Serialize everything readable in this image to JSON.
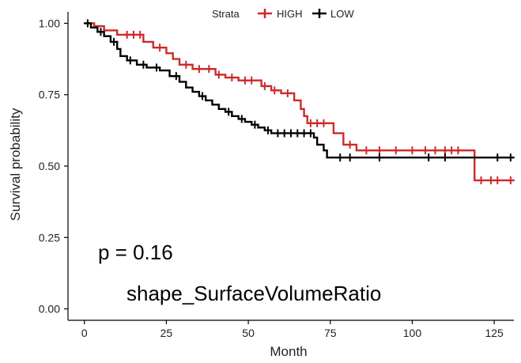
{
  "chart_data": {
    "type": "line",
    "subtype": "kaplan-meier-survival",
    "xlabel": "Month",
    "ylabel": "Survival probability",
    "xlim": [
      -5,
      131
    ],
    "ylim": [
      -0.04,
      1.04
    ],
    "x_ticks": [
      0,
      25,
      50,
      75,
      100,
      125
    ],
    "y_ticks": [
      0.0,
      0.25,
      0.5,
      0.75,
      1.0
    ],
    "y_tick_labels": [
      "0.00",
      "0.25",
      "0.50",
      "0.75",
      "1.00"
    ],
    "grid": false,
    "legend": {
      "title": "Strata",
      "position": "top"
    },
    "annotations": [
      {
        "name": "p-value",
        "text": "p = 0.16"
      },
      {
        "name": "feature-name",
        "text": "shape_SurfaceVolumeRatio"
      }
    ],
    "series": [
      {
        "name": "HIGH",
        "color": "#cc2a2a",
        "steps": [
          [
            0,
            1.0
          ],
          [
            3,
            0.99
          ],
          [
            6,
            0.975
          ],
          [
            10,
            0.96
          ],
          [
            18,
            0.935
          ],
          [
            21,
            0.915
          ],
          [
            25,
            0.895
          ],
          [
            27,
            0.875
          ],
          [
            29,
            0.855
          ],
          [
            33,
            0.84
          ],
          [
            40,
            0.82
          ],
          [
            43,
            0.81
          ],
          [
            47,
            0.8
          ],
          [
            54,
            0.78
          ],
          [
            57,
            0.765
          ],
          [
            60,
            0.755
          ],
          [
            64,
            0.73
          ],
          [
            66,
            0.7
          ],
          [
            67,
            0.675
          ],
          [
            68,
            0.65
          ],
          [
            76,
            0.615
          ],
          [
            79,
            0.575
          ],
          [
            83,
            0.555
          ],
          [
            119,
            0.45
          ],
          [
            131,
            0.45
          ]
        ],
        "censored": [
          [
            13,
            0.96
          ],
          [
            15,
            0.96
          ],
          [
            17,
            0.96
          ],
          [
            23,
            0.915
          ],
          [
            31,
            0.855
          ],
          [
            35,
            0.84
          ],
          [
            38,
            0.84
          ],
          [
            41,
            0.82
          ],
          [
            45,
            0.81
          ],
          [
            49,
            0.8
          ],
          [
            51,
            0.8
          ],
          [
            55,
            0.78
          ],
          [
            58,
            0.765
          ],
          [
            62,
            0.755
          ],
          [
            69,
            0.65
          ],
          [
            71,
            0.65
          ],
          [
            73,
            0.65
          ],
          [
            81,
            0.575
          ],
          [
            86,
            0.555
          ],
          [
            90,
            0.555
          ],
          [
            95,
            0.555
          ],
          [
            100,
            0.555
          ],
          [
            104,
            0.555
          ],
          [
            107,
            0.555
          ],
          [
            110,
            0.555
          ],
          [
            112,
            0.555
          ],
          [
            114,
            0.555
          ],
          [
            121,
            0.45
          ],
          [
            124,
            0.45
          ],
          [
            126,
            0.45
          ],
          [
            130,
            0.45
          ]
        ]
      },
      {
        "name": "LOW",
        "color": "#000000",
        "steps": [
          [
            0,
            1.0
          ],
          [
            2,
            0.985
          ],
          [
            4,
            0.97
          ],
          [
            6,
            0.955
          ],
          [
            8,
            0.935
          ],
          [
            10,
            0.91
          ],
          [
            11,
            0.885
          ],
          [
            13,
            0.87
          ],
          [
            16,
            0.855
          ],
          [
            19,
            0.845
          ],
          [
            23,
            0.835
          ],
          [
            26,
            0.815
          ],
          [
            29,
            0.795
          ],
          [
            31,
            0.775
          ],
          [
            33,
            0.76
          ],
          [
            35,
            0.745
          ],
          [
            37,
            0.73
          ],
          [
            39,
            0.715
          ],
          [
            41,
            0.7
          ],
          [
            43,
            0.69
          ],
          [
            45,
            0.675
          ],
          [
            47,
            0.665
          ],
          [
            49,
            0.655
          ],
          [
            51,
            0.645
          ],
          [
            53,
            0.635
          ],
          [
            55,
            0.625
          ],
          [
            57,
            0.615
          ],
          [
            70,
            0.6
          ],
          [
            71,
            0.575
          ],
          [
            73,
            0.555
          ],
          [
            74,
            0.53
          ],
          [
            131,
            0.53
          ]
        ],
        "censored": [
          [
            1,
            1.0
          ],
          [
            5,
            0.97
          ],
          [
            9,
            0.935
          ],
          [
            14,
            0.87
          ],
          [
            18,
            0.855
          ],
          [
            22,
            0.845
          ],
          [
            28,
            0.815
          ],
          [
            36,
            0.745
          ],
          [
            44,
            0.69
          ],
          [
            48,
            0.665
          ],
          [
            52,
            0.645
          ],
          [
            56,
            0.625
          ],
          [
            59,
            0.615
          ],
          [
            61,
            0.615
          ],
          [
            63,
            0.615
          ],
          [
            65,
            0.615
          ],
          [
            67,
            0.615
          ],
          [
            69,
            0.615
          ],
          [
            78,
            0.53
          ],
          [
            81,
            0.53
          ],
          [
            90,
            0.53
          ],
          [
            105,
            0.53
          ],
          [
            110,
            0.53
          ],
          [
            126,
            0.53
          ],
          [
            130,
            0.53
          ]
        ]
      }
    ]
  }
}
